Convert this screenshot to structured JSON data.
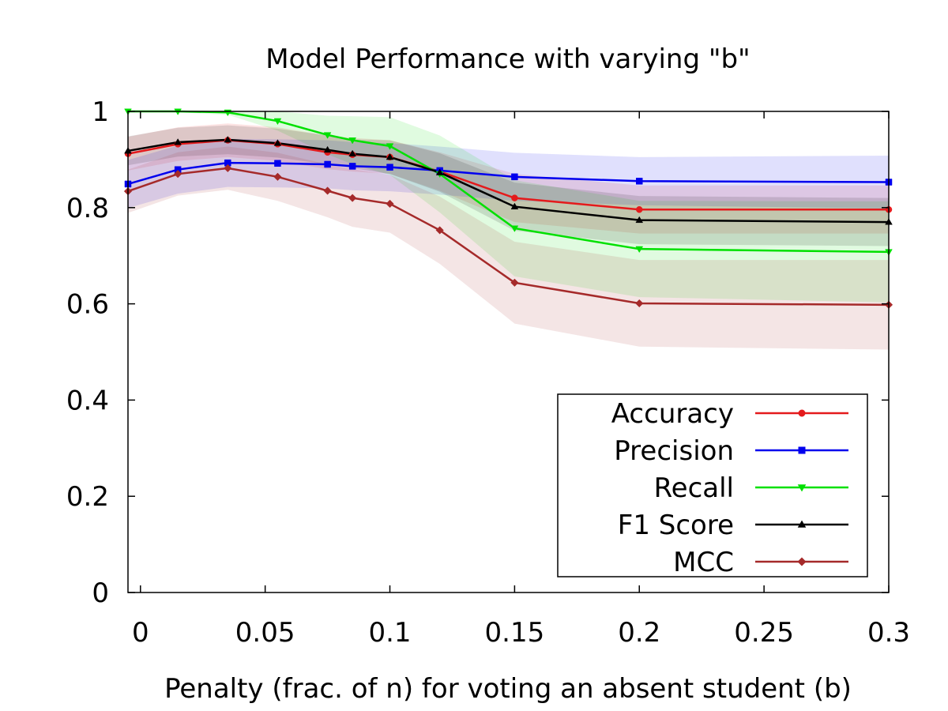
{
  "chart_data": {
    "type": "line",
    "title": "Model Performance with varying \"b\"",
    "xlabel": "Penalty (frac. of n) for voting an absent student (b)",
    "ylabel": "",
    "xlim": [
      -0.005,
      0.3
    ],
    "ylim": [
      0,
      1
    ],
    "xticks": [
      0,
      0.05,
      0.1,
      0.15,
      0.2,
      0.25,
      0.3
    ],
    "xtick_labels": [
      "0",
      "0.05",
      "0.1",
      "0.15",
      "0.2",
      "0.25",
      "0.3"
    ],
    "yticks": [
      0,
      0.2,
      0.4,
      0.6,
      0.8,
      1
    ],
    "ytick_labels": [
      "0",
      "0.2",
      "0.4",
      "0.6",
      "0.8",
      "1"
    ],
    "grid": false,
    "legend_position": "bottom-right",
    "x": [
      -0.005,
      0.015,
      0.035,
      0.055,
      0.075,
      0.085,
      0.1,
      0.12,
      0.15,
      0.2,
      0.3
    ],
    "series": [
      {
        "name": "Accuracy",
        "color": "#e41a1c",
        "marker": "circle",
        "values": [
          0.912,
          0.932,
          0.94,
          0.932,
          0.915,
          0.91,
          0.905,
          0.875,
          0.82,
          0.796,
          0.796
        ],
        "band": [
          0.035,
          0.035,
          0.035,
          0.035,
          0.035,
          0.035,
          0.035,
          0.04,
          0.05,
          0.05,
          0.05
        ]
      },
      {
        "name": "Precision",
        "color": "#0000ee",
        "marker": "square",
        "values": [
          0.849,
          0.879,
          0.893,
          0.892,
          0.89,
          0.886,
          0.884,
          0.877,
          0.864,
          0.855,
          0.853
        ],
        "band": [
          0.05,
          0.05,
          0.05,
          0.05,
          0.05,
          0.05,
          0.05,
          0.05,
          0.05,
          0.05,
          0.055
        ]
      },
      {
        "name": "Recall",
        "color": "#00e000",
        "marker": "triangle-down",
        "values": [
          1.0,
          1.0,
          0.998,
          0.98,
          0.951,
          0.94,
          0.928,
          0.87,
          0.757,
          0.714,
          0.708
        ],
        "band": [
          0.002,
          0.002,
          0.005,
          0.02,
          0.04,
          0.05,
          0.06,
          0.08,
          0.1,
          0.1,
          0.105
        ]
      },
      {
        "name": "F1 Score",
        "color": "#000000",
        "marker": "triangle-up",
        "values": [
          0.918,
          0.936,
          0.941,
          0.934,
          0.92,
          0.912,
          0.905,
          0.873,
          0.802,
          0.774,
          0.77
        ],
        "band": [
          0.03,
          0.03,
          0.03,
          0.03,
          0.03,
          0.03,
          0.035,
          0.04,
          0.05,
          0.05,
          0.05
        ]
      },
      {
        "name": "MCC",
        "color": "#a52a2a",
        "marker": "diamond",
        "values": [
          0.834,
          0.87,
          0.882,
          0.864,
          0.835,
          0.82,
          0.808,
          0.753,
          0.644,
          0.601,
          0.598
        ],
        "band": [
          0.045,
          0.045,
          0.045,
          0.05,
          0.055,
          0.06,
          0.06,
          0.07,
          0.085,
          0.09,
          0.093
        ]
      }
    ]
  }
}
